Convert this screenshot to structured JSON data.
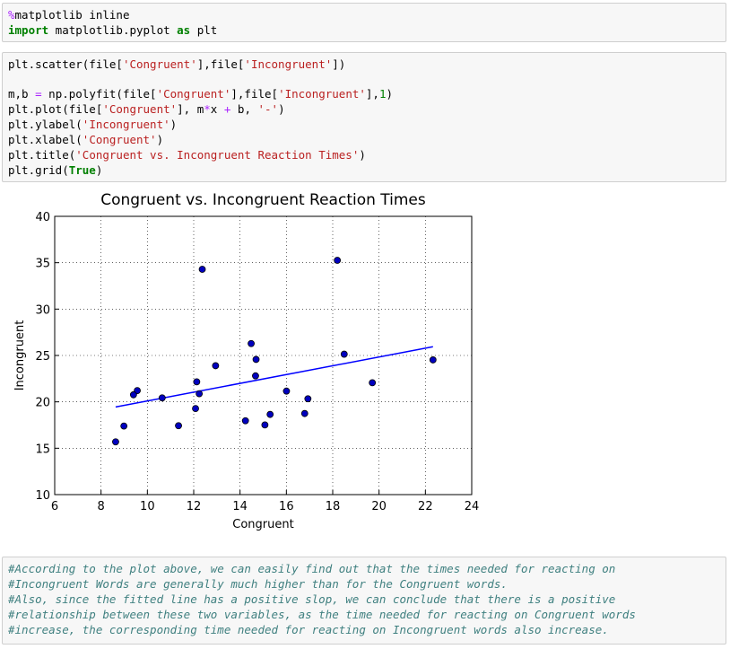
{
  "cells": [
    {
      "lines": [
        "%matplotlib inline",
        "import matplotlib.pyplot as plt"
      ]
    },
    {
      "groups": [
        [
          "plt.scatter(file['Congruent'],file['Incongruent'])"
        ],
        [
          "m,b = np.polyfit(file['Congruent'],file['Incongruent'],1)",
          "plt.plot(file['Congruent'], m*x + b, '-')",
          "plt.ylabel('Incongruent')",
          "plt.xlabel('Congruent')",
          "plt.title('Congruent vs. Incongruent Reaction Times')",
          "plt.grid(True)"
        ]
      ]
    }
  ],
  "chart_data": {
    "type": "scatter",
    "title": "Congruent vs. Incongruent Reaction Times",
    "x_label": "Congruent",
    "y_label": "Incongruent",
    "series": [
      {
        "color": "#0000bf",
        "x": [
          12.079,
          16.791,
          9.564,
          8.63,
          14.669,
          12.238,
          14.692,
          8.987,
          9.401,
          14.48,
          22.328,
          15.298,
          15.073,
          16.929,
          18.2,
          12.13,
          18.495,
          10.639,
          11.344,
          12.369,
          12.944,
          14.233,
          19.71,
          16.004
        ],
        "y": [
          19.278,
          18.741,
          21.214,
          15.687,
          22.803,
          20.878,
          24.572,
          17.394,
          20.762,
          26.282,
          24.524,
          18.644,
          17.51,
          20.33,
          35.255,
          22.158,
          25.139,
          20.429,
          17.425,
          34.288,
          23.894,
          17.96,
          22.058,
          21.157
        ]
      }
    ],
    "fit_line": {
      "color": "#0000ff"
    },
    "xlim": [
      6,
      24
    ],
    "xticks": [
      6,
      8,
      10,
      12,
      14,
      16,
      18,
      20,
      22,
      24
    ],
    "ylim": [
      10,
      40
    ],
    "yticks": [
      10,
      15,
      20,
      25,
      30,
      35,
      40
    ],
    "grid": true
  },
  "comment": {
    "lines": [
      "#According to the plot above, we can easily find out that the times needed for reacting on",
      "#Incongruent Words are generally much higher than for the Congruent words.",
      "#Also, since the fitted line has a positive slop, we can conclude that there is a positive",
      "#relationship between these two variables, as the time needed for reacting on Congruent words",
      "#increase, the corresponding time needed for reacting on Incongruent words also increase."
    ]
  }
}
